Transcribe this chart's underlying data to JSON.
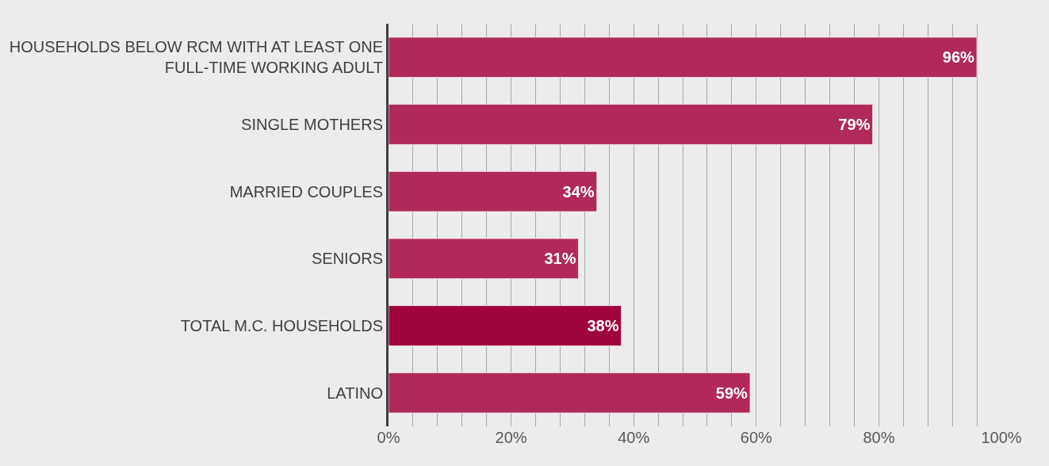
{
  "chart_data": {
    "type": "bar",
    "orientation": "horizontal",
    "categories": [
      "HOUSEHOLDS BELOW RCM WITH AT LEAST ONE FULL-TIME WORKING ADULT",
      "SINGLE MOTHERS",
      "MARRIED COUPLES",
      "SENIORS",
      "TOTAL M.C. HOUSEHOLDS",
      "LATINO"
    ],
    "values": [
      96,
      79,
      34,
      31,
      38,
      59
    ],
    "value_labels": [
      "96%",
      "79%",
      "34%",
      "31%",
      "38%",
      "59%"
    ],
    "colors": [
      "#b0295a",
      "#b0295a",
      "#b0295a",
      "#b0295a",
      "#a0043c",
      "#b0295a"
    ],
    "xlim": [
      0,
      100
    ],
    "xticks": [
      {
        "value": 0,
        "label": "0%"
      },
      {
        "value": 4,
        "label": null
      },
      {
        "value": 8,
        "label": null
      },
      {
        "value": 12,
        "label": null
      },
      {
        "value": 16,
        "label": null
      },
      {
        "value": 20,
        "label": "20%"
      },
      {
        "value": 24,
        "label": null
      },
      {
        "value": 28,
        "label": null
      },
      {
        "value": 32,
        "label": null
      },
      {
        "value": 36,
        "label": null
      },
      {
        "value": 40,
        "label": "40%"
      },
      {
        "value": 44,
        "label": null
      },
      {
        "value": 48,
        "label": null
      },
      {
        "value": 52,
        "label": null
      },
      {
        "value": 56,
        "label": null
      },
      {
        "value": 60,
        "label": "60%"
      },
      {
        "value": 64,
        "label": null
      },
      {
        "value": 68,
        "label": null
      },
      {
        "value": 72,
        "label": null
      },
      {
        "value": 76,
        "label": null
      },
      {
        "value": 80,
        "label": "80%"
      },
      {
        "value": 84,
        "label": null
      },
      {
        "value": 88,
        "label": null
      },
      {
        "value": 92,
        "label": null
      },
      {
        "value": 96,
        "label": null
      },
      {
        "value": 100,
        "label": "100%"
      }
    ],
    "grid": "x"
  }
}
